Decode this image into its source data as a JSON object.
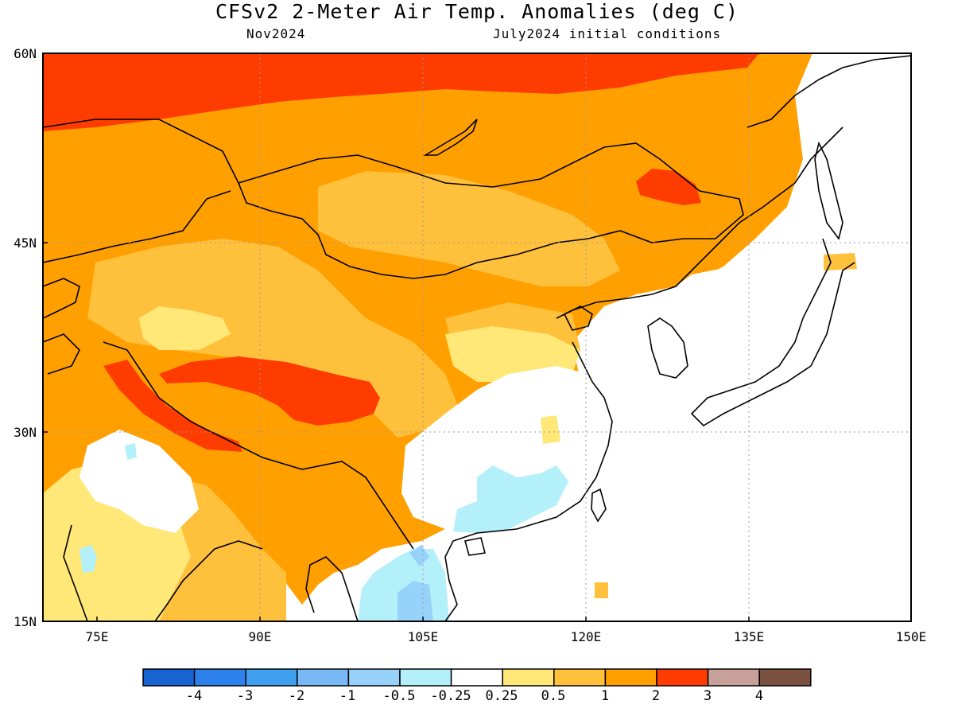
{
  "title": "CFSv2 2-Meter Air Temp. Anomalies (deg C)",
  "subtitle_left": "Nov2024",
  "subtitle_right": "July2024 initial conditions",
  "map": {
    "lon_range": [
      70,
      150
    ],
    "lat_range": [
      15,
      60
    ],
    "lon_ticks": [
      "75E",
      "90E",
      "105E",
      "120E",
      "135E",
      "150E"
    ],
    "lat_ticks": [
      "60N",
      "45N",
      "30N",
      "15N"
    ],
    "grid": "dotted at 15 degree intervals"
  },
  "colorbar": {
    "labels": [
      "-4",
      "-3",
      "-2",
      "-1",
      "-0.5",
      "-0.25",
      "0.25",
      "0.5",
      "1",
      "2",
      "3",
      "4"
    ],
    "colors": [
      "#1763d2",
      "#2c82ea",
      "#3fa0f0",
      "#78b9f5",
      "#96d2fa",
      "#b4f0fa",
      "#ffffff",
      "#ffe878",
      "#ffc03c",
      "#ffa000",
      "#ff3c00",
      "#c8a09a",
      "#7a5040"
    ]
  }
}
